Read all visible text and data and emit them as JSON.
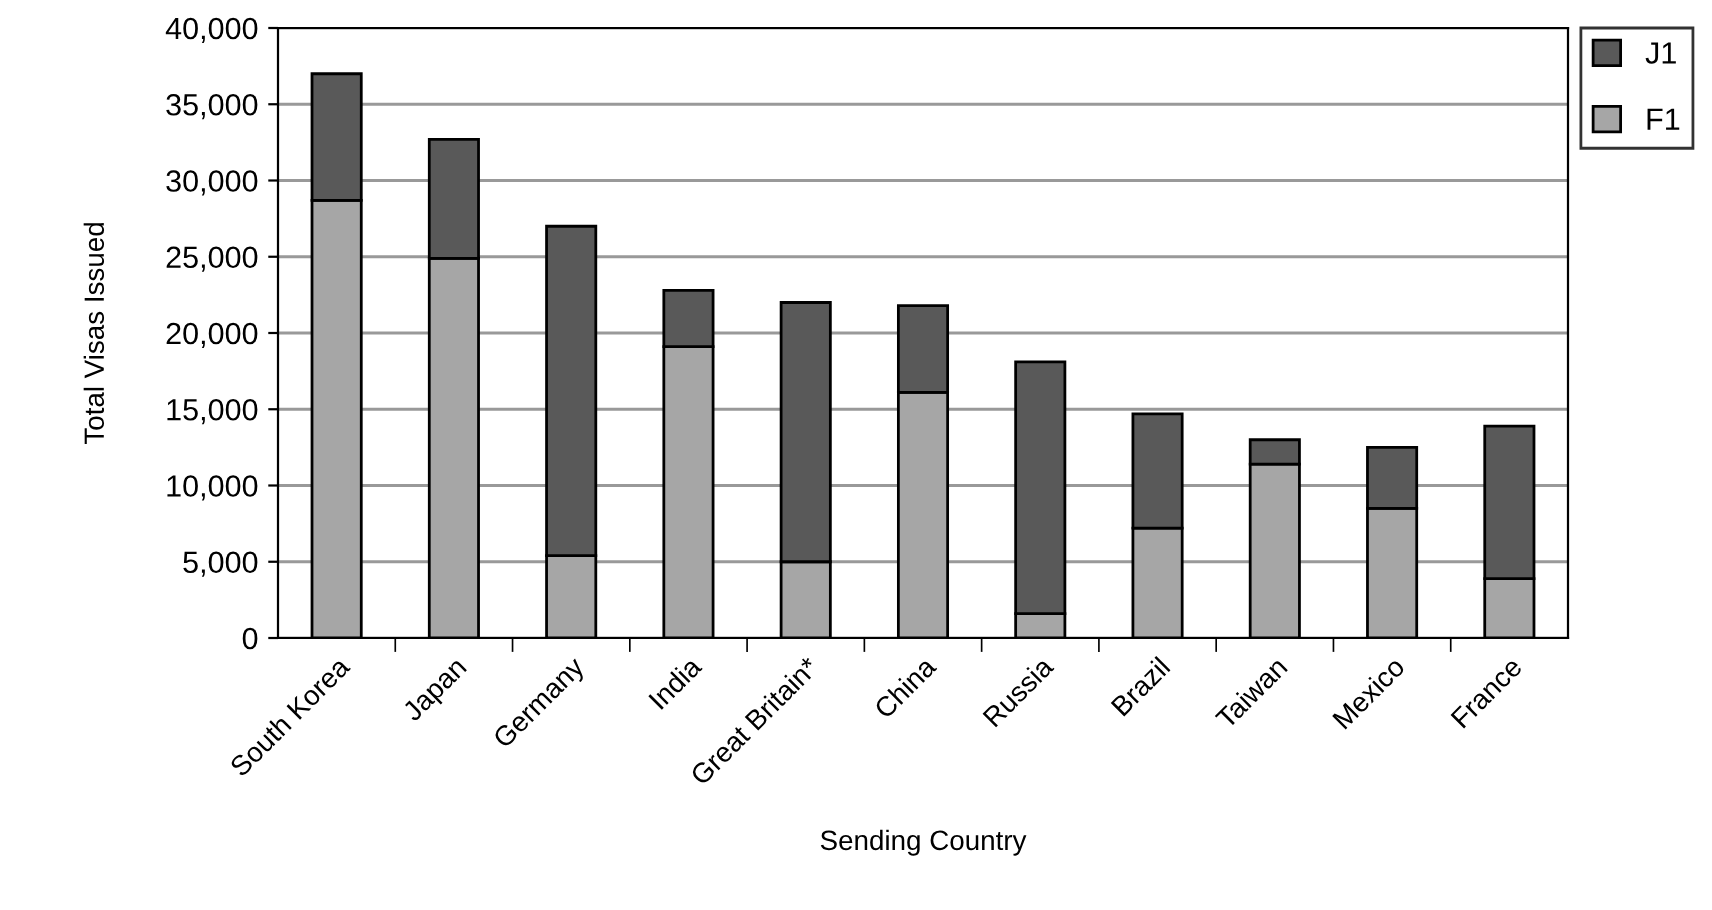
{
  "chart_data": {
    "type": "bar",
    "stacked": true,
    "xlabel": "Sending Country",
    "ylabel": "Total Visas Issued",
    "categories": [
      "South Korea",
      "Japan",
      "Germany",
      "India",
      "Great Britain*",
      "China",
      "Russia",
      "Brazil",
      "Taiwan",
      "Mexico",
      "France"
    ],
    "series": [
      {
        "name": "F1",
        "color": "#a6a6a6",
        "values": [
          28700,
          24900,
          5400,
          19100,
          5000,
          16100,
          1600,
          7200,
          11400,
          8500,
          3900
        ]
      },
      {
        "name": "J1",
        "color": "#595959",
        "values": [
          8300,
          7800,
          21600,
          3700,
          17000,
          5700,
          16500,
          7500,
          1600,
          4000,
          10000
        ]
      }
    ],
    "ylim": [
      0,
      40000
    ],
    "yticks": [
      {
        "value": 0,
        "label": "0"
      },
      {
        "value": 5000,
        "label": "5,000"
      },
      {
        "value": 10000,
        "label": "10,000"
      },
      {
        "value": 15000,
        "label": "15,000"
      },
      {
        "value": 20000,
        "label": "20,000"
      },
      {
        "value": 25000,
        "label": "25,000"
      },
      {
        "value": 30000,
        "label": "30,000"
      },
      {
        "value": 35000,
        "label": "35,000"
      },
      {
        "value": 40000,
        "label": "40,000"
      }
    ],
    "grid": "y",
    "legend": "right"
  }
}
